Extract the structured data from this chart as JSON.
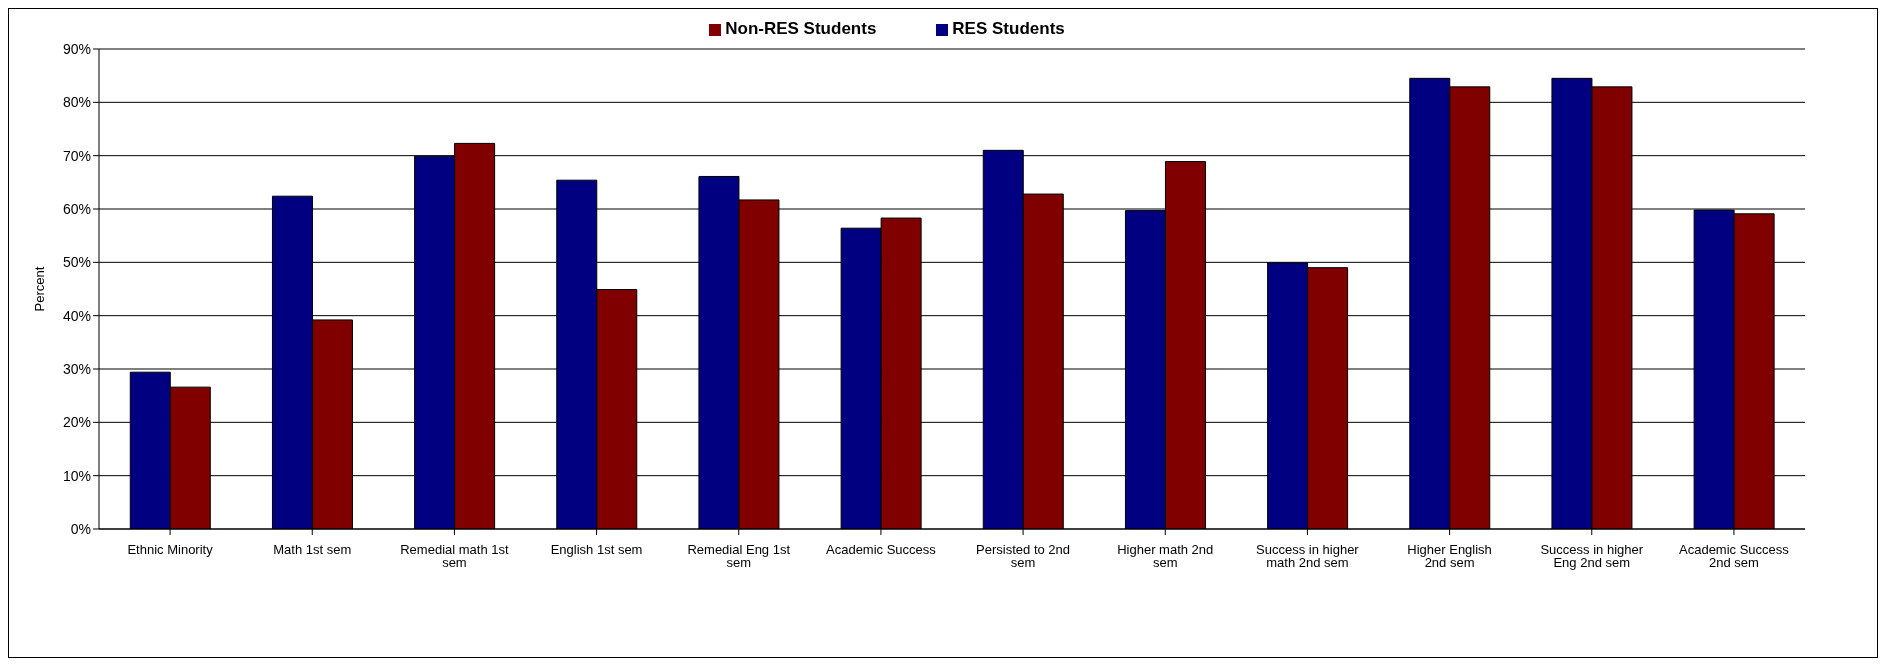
{
  "chart_data": {
    "type": "bar",
    "categories": [
      "Ethnic Minority",
      "Math 1st sem",
      "Remedial math 1st sem",
      "English 1st sem",
      "Remedial Eng 1st sem",
      "Academic Success",
      "Persisted to 2nd sem",
      "Higher math 2nd sem",
      "Success in higher math 2nd sem",
      "Higher English 2nd sem",
      "Success in higher Eng 2nd sem",
      "Academic Success 2nd sem"
    ],
    "series": [
      {
        "name": "RES Students",
        "color": "#000080",
        "values": [
          29.4,
          62.4,
          69.9,
          65.4,
          66.1,
          56.4,
          71.0,
          59.7,
          49.9,
          84.5,
          84.5,
          59.8
        ]
      },
      {
        "name": "Non-RES Students",
        "color": "#800000",
        "values": [
          26.6,
          39.2,
          72.3,
          44.9,
          61.7,
          58.3,
          62.8,
          68.9,
          49.0,
          82.9,
          82.9,
          59.1
        ]
      }
    ],
    "ylabel": "Percent",
    "ylim": [
      0,
      90
    ],
    "yticks": [
      {
        "value": 0,
        "label": "0%"
      },
      {
        "value": 10,
        "label": "10%"
      },
      {
        "value": 20,
        "label": "20%"
      },
      {
        "value": 30,
        "label": "30%"
      },
      {
        "value": 40,
        "label": "40%"
      },
      {
        "value": 50,
        "label": "50%"
      },
      {
        "value": 60,
        "label": "60%"
      },
      {
        "value": 70,
        "label": "70%"
      },
      {
        "value": 80,
        "label": "80%"
      },
      {
        "value": 90,
        "label": "90%"
      }
    ],
    "grid": "y",
    "legend": "top"
  }
}
